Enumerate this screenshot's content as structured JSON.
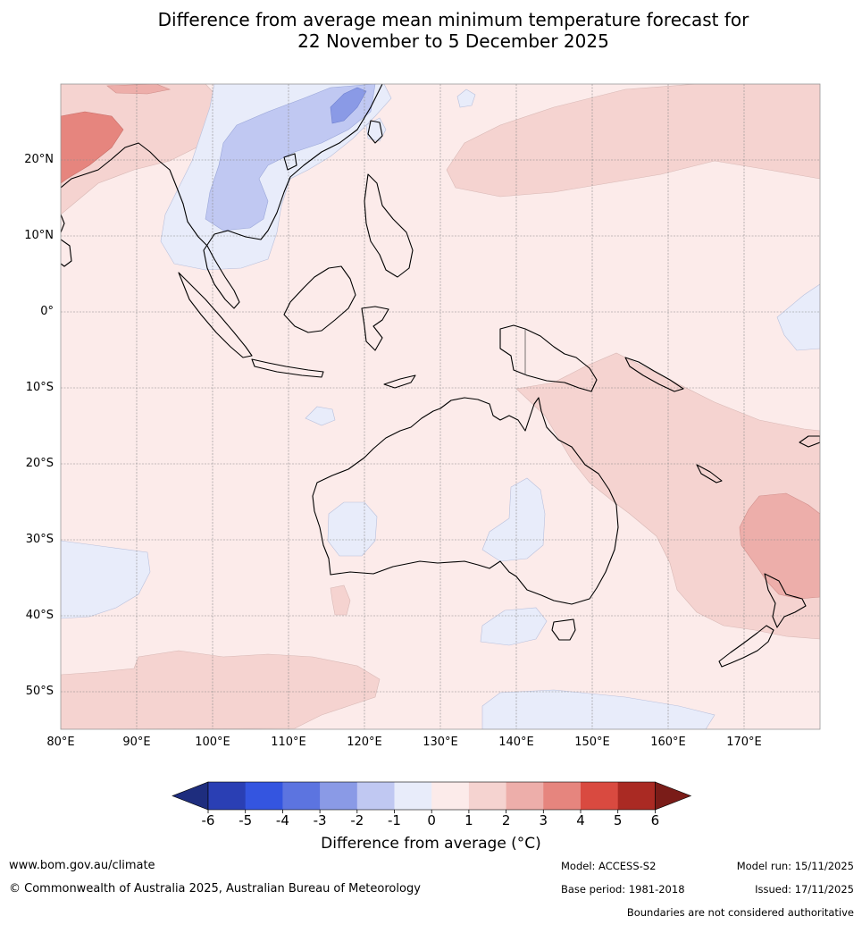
{
  "title": {
    "line1": "Difference from average mean minimum temperature forecast for",
    "line2": "22 November to 5 December 2025"
  },
  "map": {
    "lat_labels": [
      "20°N",
      "10°N",
      "0°",
      "10°S",
      "20°S",
      "30°S",
      "40°S",
      "50°S"
    ],
    "lon_labels": [
      "80°E",
      "90°E",
      "100°E",
      "110°E",
      "120°E",
      "130°E",
      "140°E",
      "150°E",
      "160°E",
      "170°E"
    ],
    "extent": {
      "lon_min": 80,
      "lon_max": 180,
      "lat_min": -55,
      "lat_max": 30
    },
    "anomaly_regions": [
      {
        "name": "west-china-warm",
        "category": "+2 to +3"
      },
      {
        "name": "south-china-cool",
        "category": "-3 to -2"
      },
      {
        "name": "indochina-cool",
        "category": "-1 to 0"
      },
      {
        "name": "north-pacific-warm",
        "category": "+1 to +2"
      },
      {
        "name": "coral-sea-warm",
        "category": "+1 to +2"
      },
      {
        "name": "tasman-nz-warm",
        "category": "+2 to +3"
      },
      {
        "name": "southern-ocean-warm",
        "category": "+1 to +2"
      },
      {
        "name": "wa-cool",
        "category": "-1 to 0"
      },
      {
        "name": "central-australia-cool",
        "category": "-1 to 0"
      },
      {
        "name": "bass-strait-cool",
        "category": "-1 to 0"
      },
      {
        "name": "far-south-cool",
        "category": "-1 to 0"
      },
      {
        "name": "indian-ocean-cool",
        "category": "-1 to 0"
      }
    ]
  },
  "legend": {
    "ticks": [
      "-6",
      "-5",
      "-4",
      "-3",
      "-2",
      "-1",
      "0",
      "1",
      "2",
      "3",
      "4",
      "5",
      "6"
    ],
    "colors": [
      "#1e2d7e",
      "#2a3fb4",
      "#3455e0",
      "#5c74e0",
      "#8a9ae6",
      "#c0c8f2",
      "#e8ecfa",
      "#fcebea",
      "#f5d3d0",
      "#edaeaa",
      "#e6857e",
      "#d94a40",
      "#aa2a23",
      "#7a1c18"
    ],
    "title": "Difference from average (°C)"
  },
  "footer": {
    "url": "www.bom.gov.au/climate",
    "copyright": "© Commonwealth of Australia 2025, Australian Bureau of Meteorology",
    "model": "Model: ACCESS-S2",
    "base_period": "Base period: 1981-2018",
    "model_run": "Model run: 15/11/2025",
    "issued": "Issued: 17/11/2025",
    "disclaimer": "Boundaries are not considered authoritative"
  }
}
